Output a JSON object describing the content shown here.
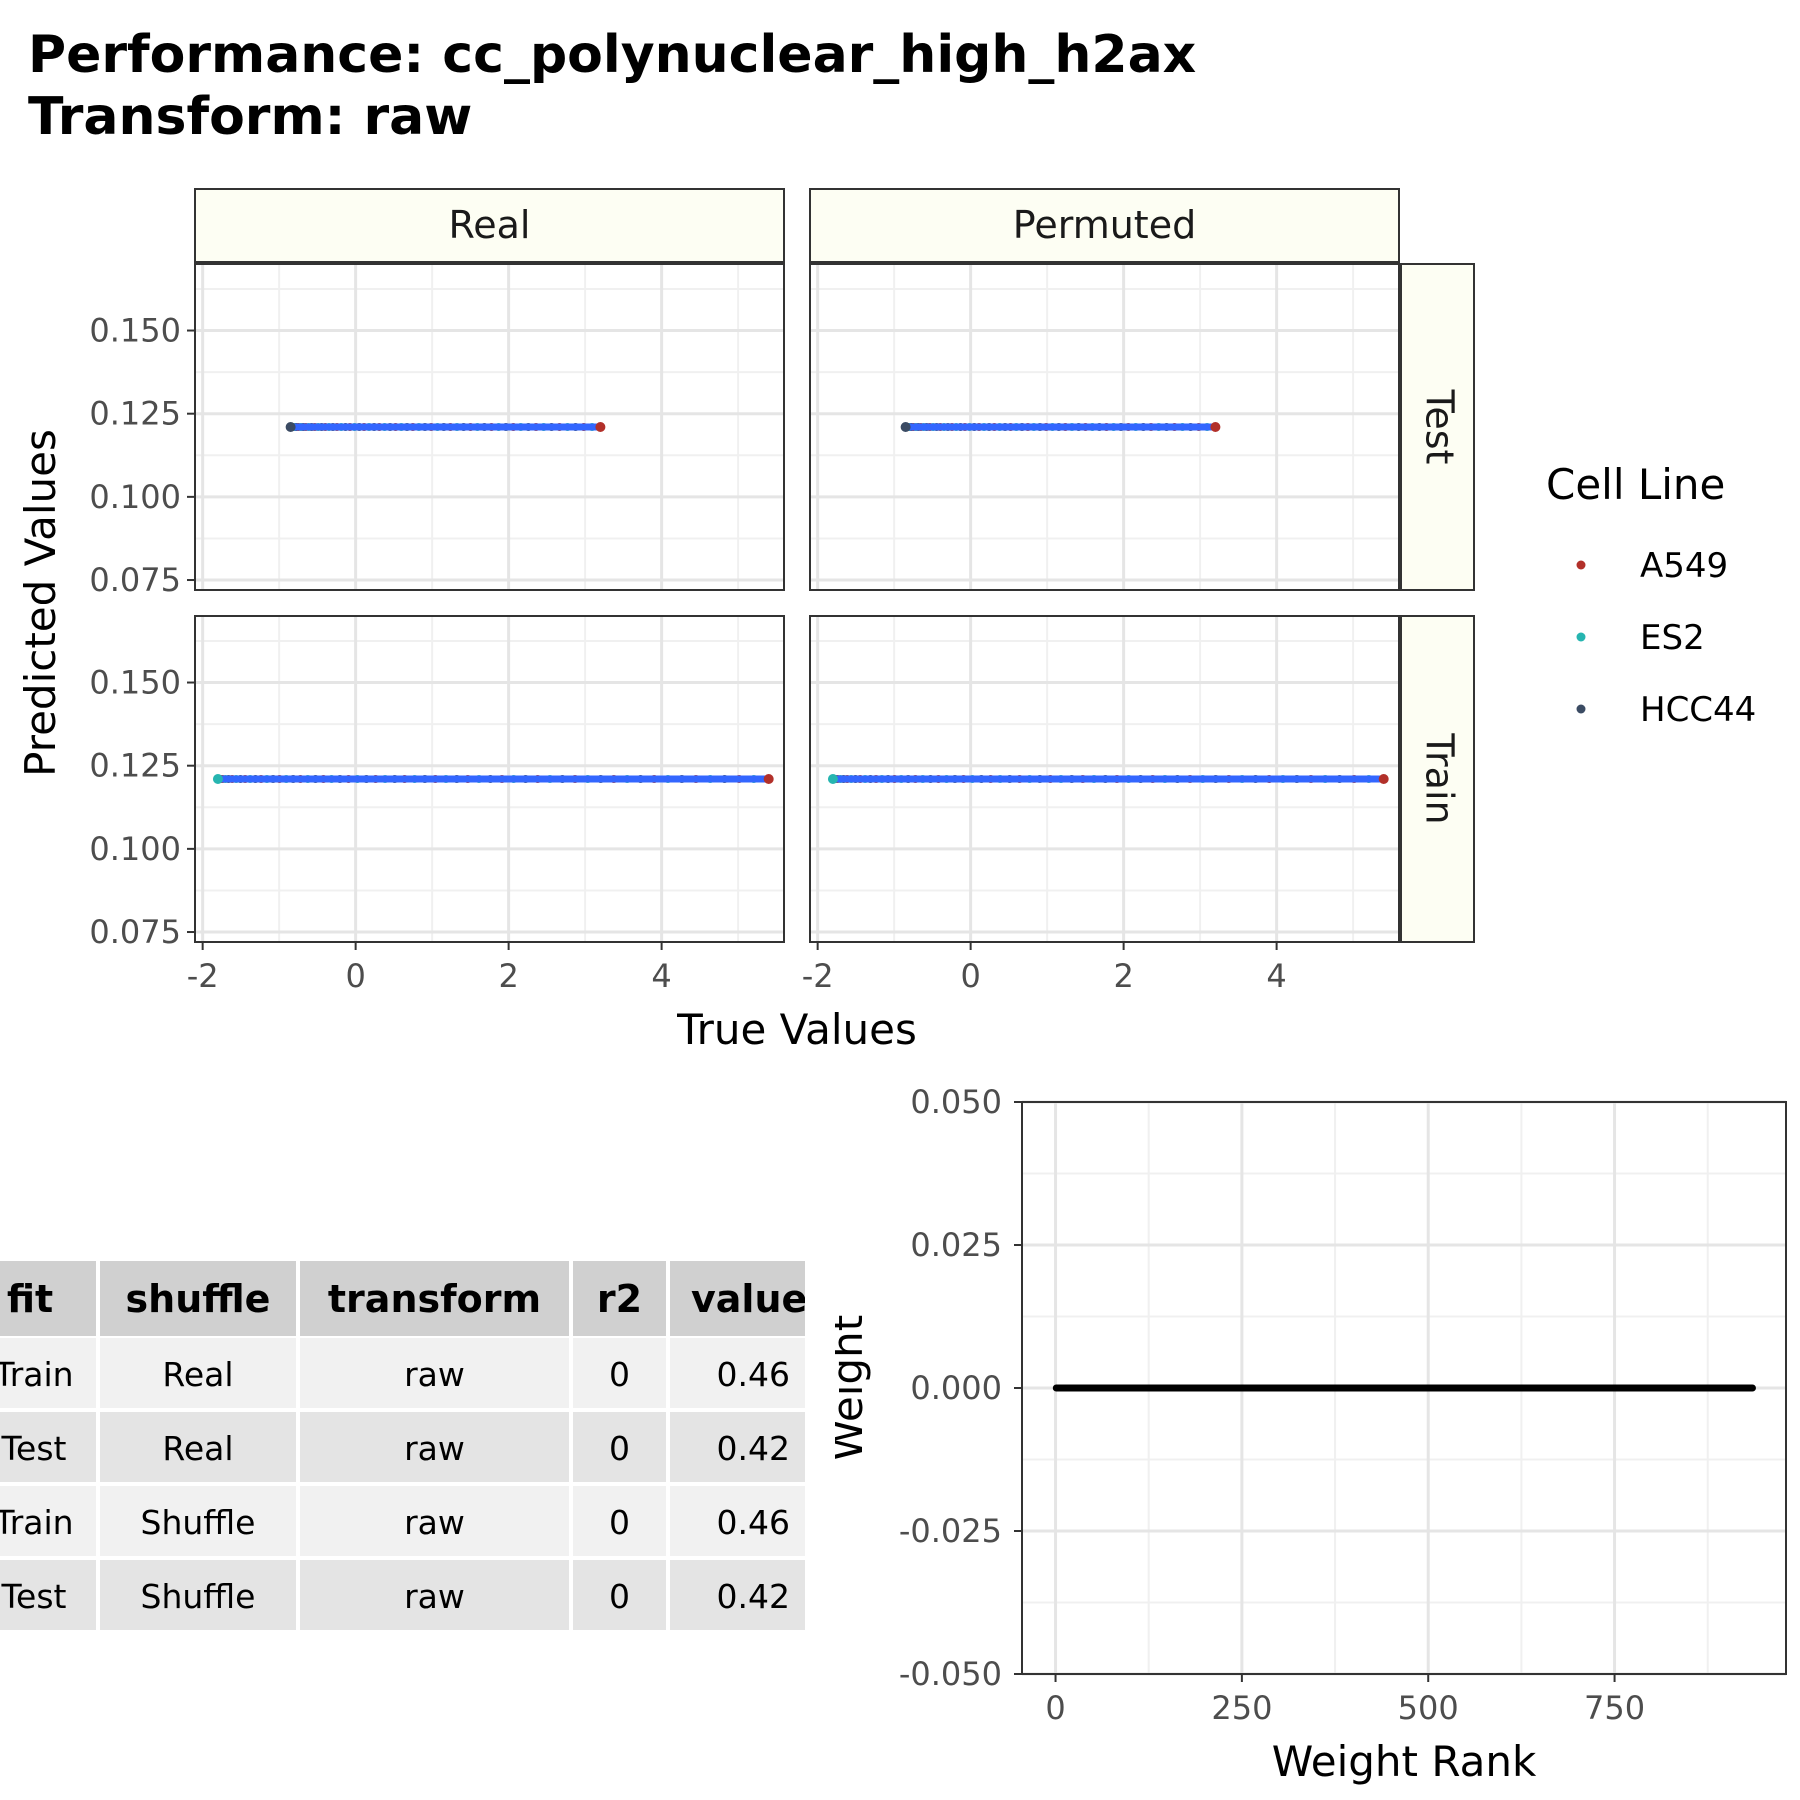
{
  "title": {
    "line1": "Performance: cc_polynuclear_high_h2ax",
    "line2": "Transform: raw"
  },
  "chart_data": [
    {
      "type": "scatter",
      "facet_columns": [
        "Real",
        "Permuted"
      ],
      "facet_rows": [
        "Test",
        "Train"
      ],
      "xlabel": "True Values",
      "ylabel": "Predicted Values",
      "xticks": [
        -2,
        0,
        2,
        4
      ],
      "yticks": [
        0.075,
        0.1,
        0.125,
        0.15
      ],
      "ytick_labels": [
        "0.075",
        "0.100",
        "0.125",
        "0.150"
      ],
      "xlim": [
        -2.1,
        5.6
      ],
      "ylim": [
        0.072,
        0.17
      ],
      "grid": true,
      "legend": {
        "title": "Cell Line",
        "position": "right",
        "entries": [
          {
            "name": "A549",
            "color": "#b2302a"
          },
          {
            "name": "ES2",
            "color": "#26b5b0"
          },
          {
            "name": "HCC44",
            "color": "#3b4b63"
          }
        ]
      },
      "fit_line_color": "#3366ff",
      "panels": [
        {
          "column": "Real",
          "row": "Test",
          "x_range": [
            -0.85,
            3.2
          ],
          "y": 0.121
        },
        {
          "column": "Permuted",
          "row": "Test",
          "x_range": [
            -0.85,
            3.2
          ],
          "y": 0.121
        },
        {
          "column": "Real",
          "row": "Train",
          "x_range": [
            -1.8,
            5.4
          ],
          "y": 0.121
        },
        {
          "column": "Permuted",
          "row": "Train",
          "x_range": [
            -1.8,
            5.4
          ],
          "y": 0.121
        }
      ]
    },
    {
      "type": "line",
      "xlabel": "Weight Rank",
      "ylabel": "Weight",
      "xticks": [
        0,
        250,
        500,
        750
      ],
      "yticks": [
        -0.05,
        -0.025,
        0,
        0.025,
        0.05
      ],
      "ytick_labels": [
        "-0.050",
        "-0.025",
        "0.000",
        "0.025",
        "0.050"
      ],
      "xlim": [
        -45,
        980
      ],
      "ylim": [
        -0.05,
        0.05
      ],
      "grid": true,
      "series": [
        {
          "x": [
            1,
            935
          ],
          "y": [
            0,
            0
          ],
          "color": "#000000"
        }
      ]
    },
    {
      "type": "table",
      "columns": [
        "fit",
        "shuffle",
        "transform",
        "r2",
        "value"
      ],
      "rows": [
        [
          "Train",
          "Real",
          "raw",
          "0",
          "0.46"
        ],
        [
          "Test",
          "Real",
          "raw",
          "0",
          "0.42"
        ],
        [
          "Train",
          "Shuffle",
          "raw",
          "0",
          "0.46"
        ],
        [
          "Test",
          "Shuffle",
          "raw",
          "0",
          "0.42"
        ]
      ]
    }
  ]
}
